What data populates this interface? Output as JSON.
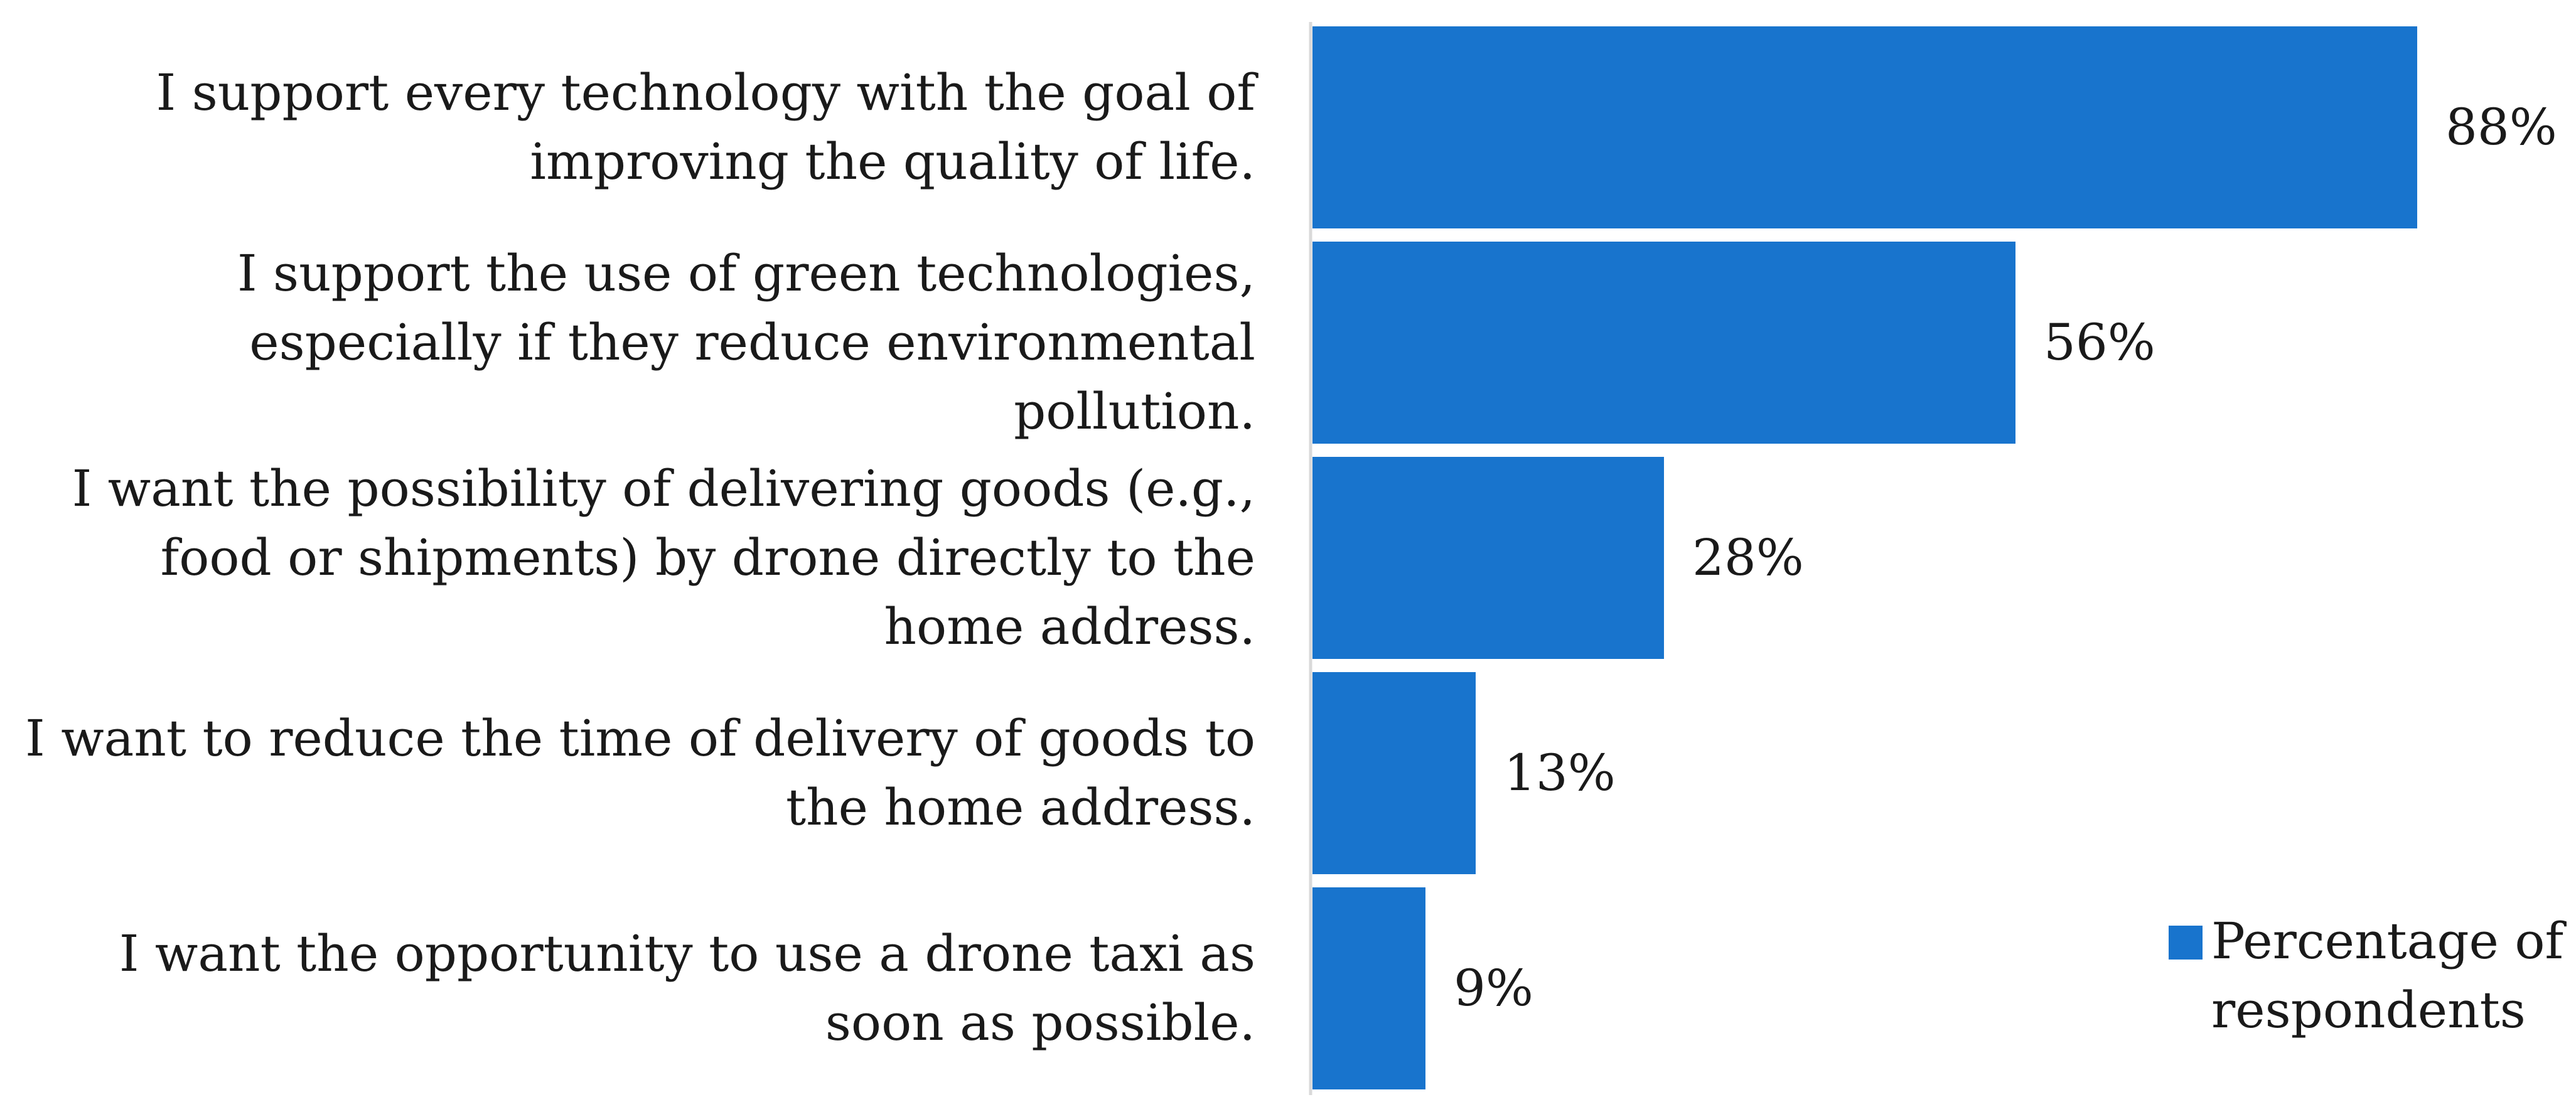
{
  "chart_data": {
    "type": "bar",
    "orientation": "horizontal",
    "title": "",
    "xlabel": "",
    "ylabel": "",
    "xlim": [
      0,
      100
    ],
    "grid": false,
    "categories": [
      "I support every technology with the goal of improving the quality of life.",
      "I support the use of green technologies, especially if they reduce environmental pollution.",
      "I want the possibility of delivering goods (e.g., food or shipments) by drone directly to the home address.",
      "I want to reduce the time of delivery of goods to the home address.",
      "I want the opportunity to use a drone taxi as soon as possible."
    ],
    "series": [
      {
        "name": "Percentage of respondents",
        "values": [
          88,
          56,
          28,
          13,
          9
        ],
        "labels": [
          "88%",
          "56%",
          "28%",
          "13%",
          "9%"
        ],
        "color": "#1874CD"
      }
    ],
    "legend": {
      "position": "bottom-right",
      "entries": [
        "Percentage of respondents"
      ]
    }
  }
}
